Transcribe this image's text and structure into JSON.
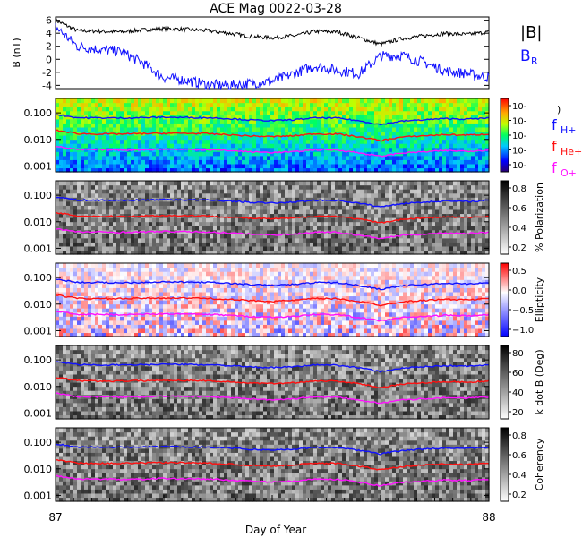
{
  "title": "ACE Mag 0022-03-28",
  "xaxis": {
    "label": "Day of Year",
    "ticks": [
      "87",
      "88"
    ],
    "range": [
      87,
      88
    ]
  },
  "colors": {
    "H": "#1010ff",
    "He": "#ff1010",
    "O": "#ff10ff",
    "Btot": "#000000",
    "BR": "#1010ff"
  },
  "chart_data": [
    {
      "type": "line",
      "panel": "B",
      "ylabel": "B (nT)",
      "ylim": [
        -4.5,
        6.5
      ],
      "yticks": [
        "6",
        "4",
        "2",
        "0",
        "-2",
        "-4"
      ],
      "series": [
        {
          "name": "|B|",
          "sub": "",
          "color": "#000000",
          "x": [
            87.0,
            87.05,
            87.1,
            87.15,
            87.2,
            87.25,
            87.3,
            87.35,
            87.4,
            87.45,
            87.5,
            87.55,
            87.6,
            87.65,
            87.7,
            87.75,
            87.8,
            87.85,
            87.9,
            87.95,
            88.0
          ],
          "values": [
            6.0,
            4.4,
            4.3,
            4.2,
            4.5,
            4.7,
            4.6,
            4.4,
            4.0,
            3.5,
            3.3,
            3.6,
            4.3,
            4.2,
            3.3,
            2.3,
            3.2,
            3.6,
            4.0,
            3.8,
            4.2
          ]
        },
        {
          "name": "B",
          "sub": "R",
          "color": "#1010ff",
          "x": [
            87.0,
            87.05,
            87.1,
            87.15,
            87.2,
            87.25,
            87.3,
            87.35,
            87.4,
            87.45,
            87.5,
            87.55,
            87.6,
            87.65,
            87.7,
            87.75,
            87.8,
            87.85,
            87.9,
            87.95,
            88.0
          ],
          "values": [
            5.0,
            2.0,
            1.5,
            1.2,
            -0.5,
            -2.8,
            -3.2,
            -3.9,
            -4.0,
            -3.7,
            -3.4,
            -2.2,
            -1.0,
            -1.7,
            -2.2,
            0.5,
            0.6,
            -0.5,
            -1.8,
            -2.2,
            -2.8
          ]
        }
      ]
    },
    {
      "type": "heatmap",
      "panel": "spectrum",
      "colorbar_ticks": [
        "10-",
        "10-",
        "10-",
        "10-",
        "10-"
      ],
      "colorbar_label": ")",
      "legend": [
        {
          "name": "f",
          "sub": "H+",
          "color": "#1010ff"
        },
        {
          "name": "f",
          "sub": "He+",
          "color": "#ff1010"
        },
        {
          "name": "f",
          "sub": "O+",
          "color": "#ff10ff"
        }
      ]
    },
    {
      "type": "heatmap",
      "panel": "polarization",
      "colorbar_label": "% Polarization",
      "colorbar_ticks": [
        "0.8",
        "0.6",
        "0.4",
        "0.2"
      ]
    },
    {
      "type": "heatmap",
      "panel": "ellipticity",
      "colorbar_label": "Ellipticity",
      "colorbar_ticks": [
        "0.5",
        "0.0",
        "−0.5",
        "−1.0"
      ]
    },
    {
      "type": "heatmap",
      "panel": "kdotb",
      "colorbar_label": "k dot B (Deg)",
      "colorbar_ticks": [
        "80",
        "60",
        "40",
        "20"
      ]
    },
    {
      "type": "heatmap",
      "panel": "coherency",
      "colorbar_label": "Coherency",
      "colorbar_ticks": [
        "0.8",
        "0.6",
        "0.4",
        "0.2"
      ]
    }
  ],
  "freq_panels": {
    "yticks": [
      "0.100",
      "0.010",
      "0.001"
    ],
    "ylim_log": [
      0.0006,
      0.35
    ],
    "gyro_lines": {
      "x": [
        87.0,
        87.05,
        87.1,
        87.15,
        87.2,
        87.25,
        87.3,
        87.35,
        87.4,
        87.45,
        87.5,
        87.55,
        87.6,
        87.65,
        87.7,
        87.75,
        87.8,
        87.85,
        87.9,
        87.95,
        88.0
      ],
      "H": [
        0.087,
        0.066,
        0.065,
        0.064,
        0.066,
        0.069,
        0.067,
        0.066,
        0.061,
        0.054,
        0.051,
        0.055,
        0.065,
        0.064,
        0.05,
        0.036,
        0.049,
        0.055,
        0.061,
        0.058,
        0.064
      ],
      "He": [
        0.022,
        0.0165,
        0.016,
        0.016,
        0.0165,
        0.017,
        0.017,
        0.0165,
        0.015,
        0.0135,
        0.0128,
        0.0138,
        0.0163,
        0.016,
        0.0125,
        0.009,
        0.0123,
        0.0138,
        0.0152,
        0.0145,
        0.016
      ],
      "O": [
        0.0055,
        0.0041,
        0.0041,
        0.004,
        0.0041,
        0.0043,
        0.0042,
        0.0041,
        0.0038,
        0.0034,
        0.0032,
        0.0034,
        0.0041,
        0.004,
        0.0031,
        0.0023,
        0.0031,
        0.0034,
        0.0038,
        0.0036,
        0.004
      ]
    }
  }
}
